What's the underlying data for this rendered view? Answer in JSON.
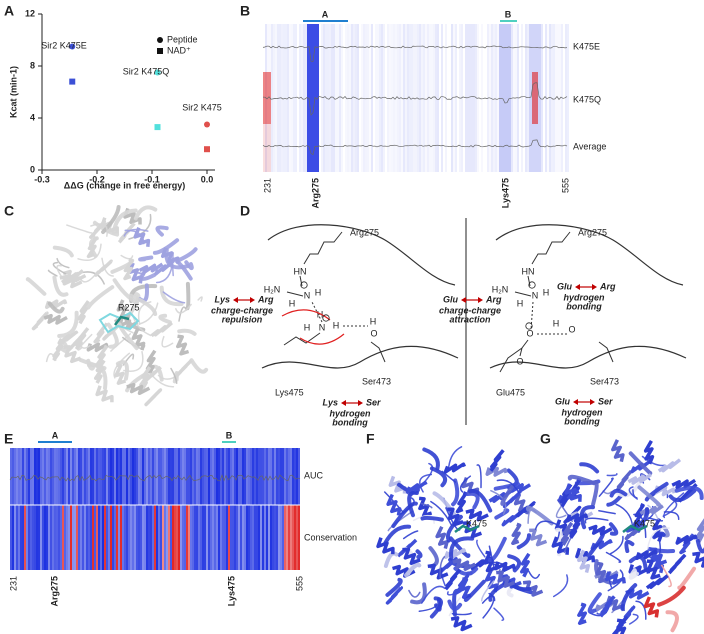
{
  "panel_labels": {
    "a": "A",
    "b": "B",
    "c": "C",
    "d": "D",
    "e": "E",
    "f": "F",
    "g": "G"
  },
  "chart_data": {
    "type": "scatter",
    "xlabel": "ΔΔG (change in free energy)",
    "ylabel": "Kcat (min-1)",
    "xlim": [
      -0.3,
      0
    ],
    "ylim": [
      0,
      12
    ],
    "xticks": [
      -0.3,
      -0.2,
      -0.1,
      {
        "value": 0,
        "label": "0.0"
      }
    ],
    "yticks": [
      0,
      4,
      8,
      12
    ],
    "point_labels": [
      "Sir2 K475E",
      "Sir2 K475Q",
      "Sir2 K475"
    ],
    "point_colors": [
      "#3c50d6",
      "#52e0dc",
      "#e0504c"
    ],
    "x": [
      -0.245,
      -0.09,
      0
    ],
    "series": [
      {
        "name": "Peptide",
        "marker": "circle",
        "values": [
          9.5,
          7.5,
          3.5
        ]
      },
      {
        "name": "NAD⁺",
        "marker": "square",
        "values": [
          6.8,
          3.3,
          1.6
        ]
      }
    ],
    "legend": "upper right"
  },
  "panel_b": {
    "bars": [
      "A",
      "B"
    ],
    "rows": [
      "K475E",
      "K475Q",
      "Average"
    ],
    "positions": [
      "231",
      "Arg275",
      "Lys475",
      "555"
    ]
  },
  "panel_c": {
    "residue": "R275"
  },
  "panel_d": {
    "left": {
      "residues": [
        "Arg275",
        "Lys475",
        "Ser473"
      ],
      "atoms": [
        "HN",
        "H₂N",
        "N",
        "H",
        "H",
        "N",
        "H",
        "H",
        "H",
        "O",
        "H"
      ],
      "notes": [
        {
          "from": "Lys",
          "to": "Arg",
          "text": [
            "charge-charge",
            "repulsion"
          ]
        },
        {
          "from": "Lys",
          "to": "Ser",
          "text": [
            "hydrogen",
            "bonding"
          ]
        }
      ]
    },
    "right": {
      "residues": [
        "Arg275",
        "Glu475",
        "Ser473"
      ],
      "atoms": [
        "HN",
        "H₂N",
        "N",
        "H",
        "H",
        "O",
        "O",
        "O",
        "H"
      ],
      "notes": [
        {
          "from": "Glu",
          "to": "Arg",
          "text": [
            "charge-charge",
            "attraction"
          ]
        },
        {
          "from": "Glu",
          "to": "Arg",
          "text": [
            "hydrogen",
            "bonding"
          ]
        },
        {
          "from": "Glu",
          "to": "Ser",
          "text": [
            "hydrogen",
            "bonding"
          ]
        }
      ]
    }
  },
  "panel_e": {
    "bars": [
      "A",
      "B"
    ],
    "rows": [
      "AUC",
      "Conservation"
    ],
    "positions": [
      "231",
      "Arg275",
      "Lys475",
      "555"
    ]
  },
  "panel_f": {
    "residue": "K475"
  },
  "panel_g": {
    "residue": "K475"
  }
}
